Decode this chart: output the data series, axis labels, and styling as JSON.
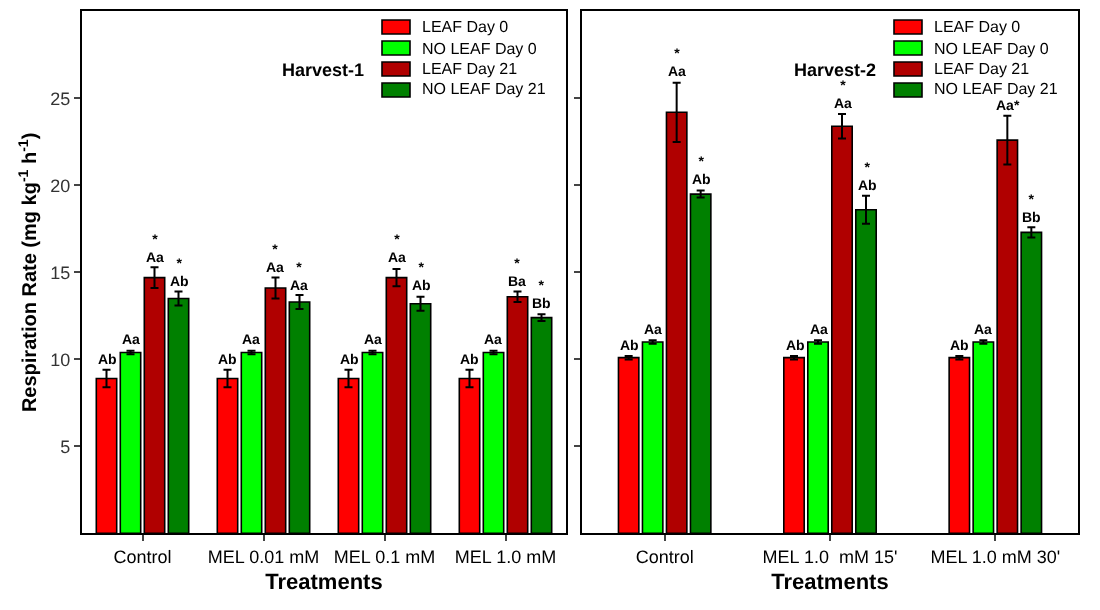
{
  "chart_data": [
    {
      "type": "bar",
      "xlabel": "Treatments",
      "ylabel": "Respiration Rate (mg kg$^{-1}$ h$^{-1}$)",
      "annotations": [
        "Harvest-1"
      ],
      "categories": [
        "Control",
        "MEL 0.01 mM",
        "MEL 0.1 mM",
        "MEL 1.0 mM"
      ],
      "ylim": [
        0,
        30
      ],
      "yticks": [
        5,
        10,
        15,
        20,
        25
      ],
      "legend": "top right",
      "series": [
        {
          "name": "LEAF Day 0",
          "color": "#ff0000",
          "values": [
            8.9,
            8.9,
            8.9,
            8.9
          ],
          "errors": [
            0.5,
            0.5,
            0.5,
            0.5
          ],
          "value_labels": [
            "Ab",
            "Ab",
            "Ab",
            "Ab"
          ]
        },
        {
          "name": "NO LEAF Day 0",
          "color": "#00ff00",
          "values": [
            10.4,
            10.4,
            10.4,
            10.4
          ],
          "errors": [
            0.1,
            0.1,
            0.1,
            0.1
          ],
          "value_labels": [
            "Aa",
            "Aa",
            "Aa",
            "Aa"
          ]
        },
        {
          "name": "LEAF Day 21",
          "color": "#b00000",
          "values": [
            14.7,
            14.1,
            14.7,
            13.6
          ],
          "errors": [
            0.6,
            0.6,
            0.5,
            0.3
          ],
          "value_labels": [
            "*\nAa",
            "*\nAa",
            "*\nAa",
            "*\nBa"
          ]
        },
        {
          "name": "NO LEAF Day 21",
          "color": "#008000",
          "values": [
            13.5,
            13.3,
            13.2,
            12.4
          ],
          "errors": [
            0.4,
            0.4,
            0.4,
            0.2
          ],
          "value_labels": [
            "*\nAb",
            "*\nAa",
            "*\nAb",
            "*\nBb"
          ]
        }
      ]
    },
    {
      "type": "bar",
      "xlabel": "Treatments",
      "annotations": [
        "Harvest-2"
      ],
      "categories": [
        "Control",
        "MEL 1.0  mM 15'",
        "MEL 1.0 mM 30'"
      ],
      "ylim": [
        0,
        30
      ],
      "yticks": [
        5,
        10,
        15,
        20,
        25
      ],
      "tick_labels": "x",
      "legend": "top right",
      "series": [
        {
          "name": "LEAF Day 0",
          "color": "#ff0000",
          "values": [
            10.1,
            10.1,
            10.1
          ],
          "errors": [
            0.1,
            0.1,
            0.1
          ],
          "value_labels": [
            "Ab",
            "Ab",
            "Ab"
          ]
        },
        {
          "name": "NO LEAF Day 0",
          "color": "#00ff00",
          "values": [
            11.0,
            11.0,
            11.0
          ],
          "errors": [
            0.1,
            0.1,
            0.1
          ],
          "value_labels": [
            "Aa",
            "Aa",
            "Aa"
          ]
        },
        {
          "name": "LEAF Day 21",
          "color": "#b00000",
          "values": [
            24.2,
            23.4,
            22.6
          ],
          "errors": [
            1.7,
            0.7,
            1.4
          ],
          "value_labels": [
            "*\nAa",
            "*\nAa",
            "Aa*"
          ]
        },
        {
          "name": "NO LEAF Day 21",
          "color": "#008000",
          "values": [
            19.5,
            18.6,
            17.3
          ],
          "errors": [
            0.2,
            0.8,
            0.3
          ],
          "value_labels": [
            "*\nAb",
            "*\nAb",
            "*\nBb"
          ]
        }
      ]
    }
  ]
}
